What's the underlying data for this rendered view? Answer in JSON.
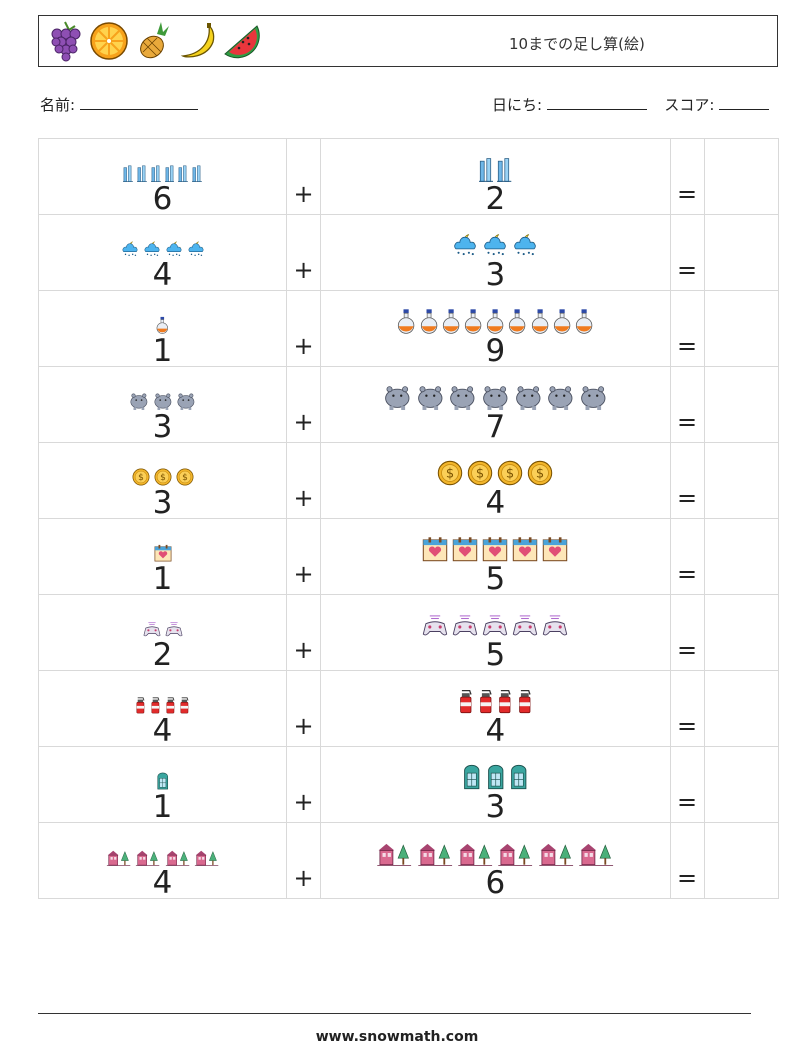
{
  "header": {
    "title": "10までの足し算(絵)",
    "fruit_icons": [
      "grapes-icon",
      "orange-slice-icon",
      "pineapple-icon",
      "banana-icon",
      "watermelon-icon"
    ]
  },
  "form": {
    "name_label": "名前:",
    "date_label": "日にち:",
    "score_label": "スコア:"
  },
  "operators": {
    "plus": "+",
    "equals": "="
  },
  "problems": [
    {
      "a": 6,
      "b": 2,
      "icon": "skyscraper-icon"
    },
    {
      "a": 4,
      "b": 3,
      "icon": "night-snow-cloud-icon"
    },
    {
      "a": 1,
      "b": 9,
      "icon": "potion-flask-icon"
    },
    {
      "a": 3,
      "b": 7,
      "icon": "hippo-icon"
    },
    {
      "a": 3,
      "b": 4,
      "icon": "dollar-coin-icon"
    },
    {
      "a": 1,
      "b": 5,
      "icon": "heart-calendar-icon"
    },
    {
      "a": 2,
      "b": 5,
      "icon": "gamepad-icon"
    },
    {
      "a": 4,
      "b": 4,
      "icon": "fire-extinguisher-icon"
    },
    {
      "a": 1,
      "b": 3,
      "icon": "phone-booth-icon"
    },
    {
      "a": 4,
      "b": 6,
      "icon": "house-tree-icon"
    }
  ],
  "footer": {
    "url": "www.snowmath.com"
  }
}
